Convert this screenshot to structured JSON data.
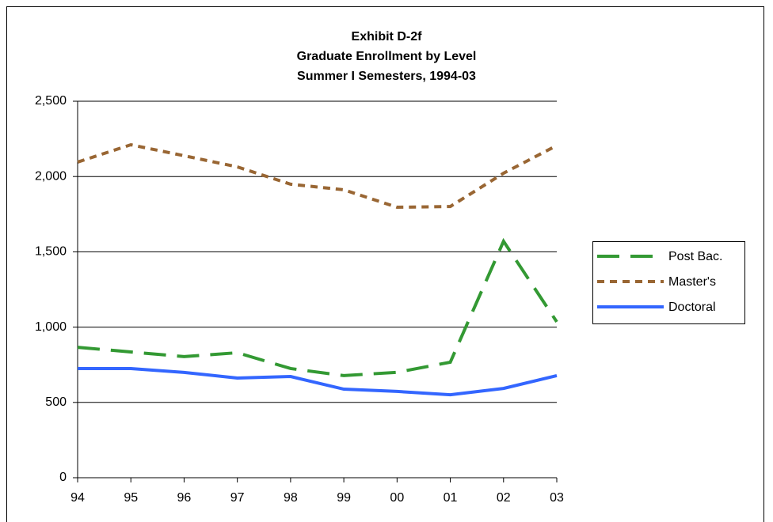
{
  "chart_data": {
    "type": "line",
    "title": "Exhibit D-2f",
    "subtitle": [
      "Graduate Enrollment by Level",
      "Summer I Semesters, 1994-03"
    ],
    "categories": [
      "94",
      "95",
      "96",
      "97",
      "98",
      "99",
      "00",
      "01",
      "02",
      "03"
    ],
    "series": [
      {
        "name": "Post Bac.",
        "color": "#339933",
        "dash": "long-dash",
        "values": [
          866,
          835,
          804,
          830,
          725,
          678,
          700,
          767,
          1570,
          1035
        ]
      },
      {
        "name": "Master's",
        "color": "#996633",
        "dash": "short-dash",
        "values": [
          2096,
          2211,
          2138,
          2064,
          1949,
          1912,
          1796,
          1801,
          2022,
          2206
        ]
      },
      {
        "name": "Doctoral",
        "color": "#3366ff",
        "dash": "solid",
        "values": [
          725,
          725,
          699,
          662,
          672,
          588,
          573,
          551,
          593,
          678
        ]
      }
    ],
    "ylim": [
      0,
      2500
    ],
    "yticks": [
      0,
      500,
      {
        "value": 1000,
        "label": "1,000"
      },
      {
        "value": 1500,
        "label": "1,500"
      },
      {
        "value": 2000,
        "label": "2,000"
      },
      {
        "value": 2500,
        "label": "2,500"
      }
    ],
    "grid": true,
    "legend": "right"
  }
}
